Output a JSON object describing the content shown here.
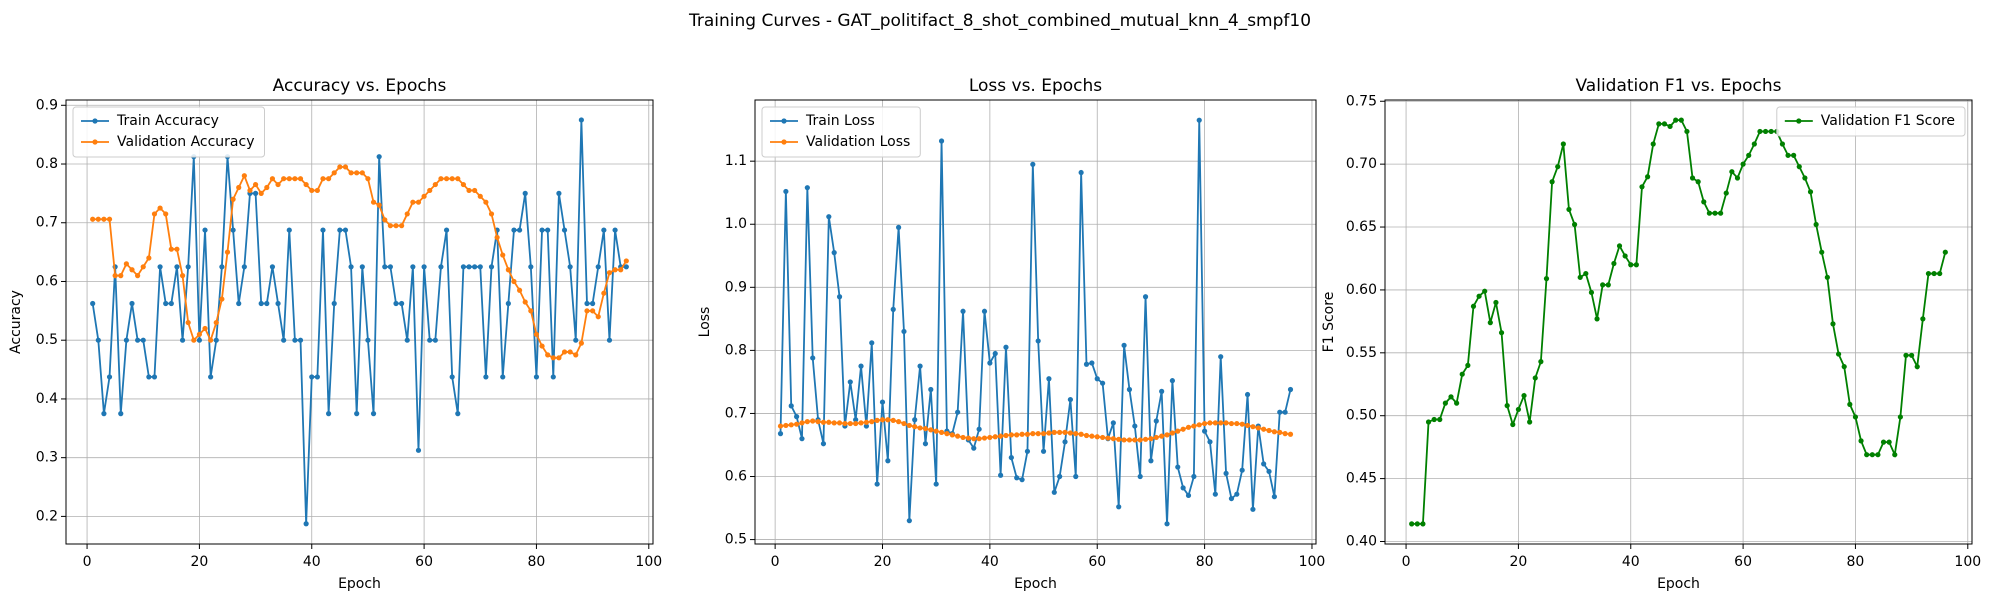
{
  "title": "Training Curves - GAT_politifact_8_shot_combined_mutual_knn_4_smpf10",
  "chart_data": [
    {
      "type": "line",
      "title": "Accuracy vs. Epochs",
      "xlabel": "Epoch",
      "ylabel": "Accuracy",
      "grid": true,
      "legend": "upper left",
      "x": [
        1,
        2,
        3,
        4,
        5,
        6,
        7,
        8,
        9,
        10,
        11,
        12,
        13,
        14,
        15,
        16,
        17,
        18,
        19,
        20,
        21,
        22,
        23,
        24,
        25,
        26,
        27,
        28,
        29,
        30,
        31,
        32,
        33,
        34,
        35,
        36,
        37,
        38,
        39,
        40,
        41,
        42,
        43,
        44,
        45,
        46,
        47,
        48,
        49,
        50,
        51,
        52,
        53,
        54,
        55,
        56,
        57,
        58,
        59,
        60,
        61,
        62,
        63,
        64,
        65,
        66,
        67,
        68,
        69,
        70,
        71,
        72,
        73,
        74,
        75,
        76,
        77,
        78,
        79,
        80,
        81,
        82,
        83,
        84,
        85,
        86,
        87,
        88,
        89,
        90,
        91,
        92,
        93,
        94,
        95,
        96
      ],
      "xlim": [
        -3.75,
        100.75
      ],
      "xticks": [
        0,
        20,
        40,
        60,
        80,
        100
      ],
      "ylim": [
        0.153,
        0.909
      ],
      "yticks": [
        0.2,
        0.3,
        0.4,
        0.5,
        0.6,
        0.7,
        0.8,
        0.9
      ],
      "series": [
        {
          "name": "Train Accuracy",
          "color": "#1f77b4",
          "values": [
            0.5625,
            0.5,
            0.375,
            0.4375,
            0.625,
            0.375,
            0.5,
            0.5625,
            0.5,
            0.5,
            0.4375,
            0.4375,
            0.625,
            0.5625,
            0.5625,
            0.625,
            0.5,
            0.625,
            0.8125,
            0.5,
            0.6875,
            0.4375,
            0.5,
            0.625,
            0.8125,
            0.6875,
            0.5625,
            0.625,
            0.75,
            0.75,
            0.5625,
            0.5625,
            0.625,
            0.5625,
            0.5,
            0.6875,
            0.5,
            0.5,
            0.1875,
            0.4375,
            0.4375,
            0.6875,
            0.375,
            0.5625,
            0.6875,
            0.6875,
            0.625,
            0.375,
            0.625,
            0.5,
            0.375,
            0.8125,
            0.625,
            0.625,
            0.5625,
            0.5625,
            0.5,
            0.625,
            0.3125,
            0.625,
            0.5,
            0.5,
            0.625,
            0.6875,
            0.4375,
            0.375,
            0.625,
            0.625,
            0.625,
            0.625,
            0.4375,
            0.625,
            0.6875,
            0.4375,
            0.5625,
            0.6875,
            0.6875,
            0.75,
            0.625,
            0.4375,
            0.6875,
            0.6875,
            0.4375,
            0.75,
            0.6875,
            0.625,
            0.5,
            0.875,
            0.5625,
            0.5625,
            0.625,
            0.6875,
            0.5,
            0.6875,
            0.625,
            0.625
          ]
        },
        {
          "name": "Validation Accuracy",
          "color": "#ff7f0e",
          "values": [
            0.706,
            0.706,
            0.706,
            0.706,
            0.61,
            0.61,
            0.63,
            0.62,
            0.61,
            0.625,
            0.64,
            0.715,
            0.725,
            0.715,
            0.655,
            0.655,
            0.61,
            0.53,
            0.5,
            0.51,
            0.52,
            0.5,
            0.53,
            0.57,
            0.65,
            0.74,
            0.76,
            0.78,
            0.755,
            0.765,
            0.75,
            0.76,
            0.775,
            0.765,
            0.775,
            0.775,
            0.775,
            0.775,
            0.765,
            0.755,
            0.755,
            0.775,
            0.775,
            0.785,
            0.795,
            0.795,
            0.785,
            0.785,
            0.785,
            0.775,
            0.735,
            0.73,
            0.705,
            0.695,
            0.695,
            0.695,
            0.715,
            0.735,
            0.735,
            0.745,
            0.755,
            0.765,
            0.775,
            0.775,
            0.775,
            0.775,
            0.765,
            0.755,
            0.755,
            0.745,
            0.735,
            0.715,
            0.675,
            0.645,
            0.62,
            0.6,
            0.585,
            0.565,
            0.55,
            0.51,
            0.49,
            0.475,
            0.47,
            0.47,
            0.48,
            0.48,
            0.475,
            0.495,
            0.55,
            0.55,
            0.54,
            0.58,
            0.615,
            0.62,
            0.62,
            0.635
          ]
        }
      ]
    },
    {
      "type": "line",
      "title": "Loss vs. Epochs",
      "xlabel": "Epoch",
      "ylabel": "Loss",
      "grid": true,
      "legend": "upper left",
      "x": [
        1,
        2,
        3,
        4,
        5,
        6,
        7,
        8,
        9,
        10,
        11,
        12,
        13,
        14,
        15,
        16,
        17,
        18,
        19,
        20,
        21,
        22,
        23,
        24,
        25,
        26,
        27,
        28,
        29,
        30,
        31,
        32,
        33,
        34,
        35,
        36,
        37,
        38,
        39,
        40,
        41,
        42,
        43,
        44,
        45,
        46,
        47,
        48,
        49,
        50,
        51,
        52,
        53,
        54,
        55,
        56,
        57,
        58,
        59,
        60,
        61,
        62,
        63,
        64,
        65,
        66,
        67,
        68,
        69,
        70,
        71,
        72,
        73,
        74,
        75,
        76,
        77,
        78,
        79,
        80,
        81,
        82,
        83,
        84,
        85,
        86,
        87,
        88,
        89,
        90,
        91,
        92,
        93,
        94,
        95,
        96
      ],
      "xlim": [
        -3.75,
        100.75
      ],
      "xticks": [
        0,
        20,
        40,
        60,
        80,
        100
      ],
      "ylim": [
        0.493,
        1.197
      ],
      "yticks": [
        0.5,
        0.6,
        0.7,
        0.8,
        0.9,
        {
          "value": 1.0,
          "label": "1.0"
        },
        1.1
      ],
      "series": [
        {
          "name": "Train Loss",
          "color": "#1f77b4",
          "values": [
            0.668,
            1.052,
            0.712,
            0.695,
            0.66,
            1.058,
            0.788,
            0.69,
            0.652,
            1.012,
            0.955,
            0.885,
            0.68,
            0.75,
            0.69,
            0.775,
            0.68,
            0.812,
            0.588,
            0.718,
            0.625,
            0.865,
            0.995,
            0.83,
            0.53,
            0.69,
            0.775,
            0.652,
            0.738,
            0.588,
            1.132,
            0.672,
            0.668,
            0.702,
            0.862,
            0.658,
            0.645,
            0.675,
            0.862,
            0.78,
            0.795,
            0.602,
            0.805,
            0.63,
            0.598,
            0.595,
            0.64,
            1.095,
            0.815,
            0.64,
            0.755,
            0.575,
            0.6,
            0.655,
            0.722,
            0.6,
            1.082,
            0.778,
            0.78,
            0.755,
            0.748,
            0.66,
            0.685,
            0.552,
            0.808,
            0.738,
            0.68,
            0.6,
            0.885,
            0.625,
            0.688,
            0.735,
            0.525,
            0.752,
            0.615,
            0.582,
            0.57,
            0.6,
            1.165,
            0.672,
            0.655,
            0.572,
            0.79,
            0.605,
            0.565,
            0.572,
            0.61,
            0.73,
            0.548,
            0.68,
            0.62,
            0.608,
            0.568,
            0.702,
            0.702,
            0.738
          ]
        },
        {
          "name": "Validation Loss",
          "color": "#ff7f0e",
          "values": [
            0.68,
            0.681,
            0.682,
            0.683,
            0.685,
            0.687,
            0.688,
            0.687,
            0.686,
            0.686,
            0.685,
            0.685,
            0.684,
            0.684,
            0.684,
            0.685,
            0.686,
            0.687,
            0.689,
            0.69,
            0.69,
            0.689,
            0.687,
            0.684,
            0.681,
            0.679,
            0.677,
            0.676,
            0.674,
            0.672,
            0.67,
            0.668,
            0.666,
            0.664,
            0.662,
            0.661,
            0.66,
            0.66,
            0.661,
            0.662,
            0.663,
            0.664,
            0.665,
            0.666,
            0.666,
            0.667,
            0.667,
            0.668,
            0.668,
            0.668,
            0.669,
            0.67,
            0.67,
            0.67,
            0.669,
            0.668,
            0.667,
            0.665,
            0.664,
            0.663,
            0.662,
            0.661,
            0.66,
            0.659,
            0.658,
            0.658,
            0.658,
            0.658,
            0.659,
            0.66,
            0.662,
            0.664,
            0.666,
            0.669,
            0.672,
            0.675,
            0.678,
            0.68,
            0.682,
            0.684,
            0.685,
            0.685,
            0.685,
            0.685,
            0.684,
            0.684,
            0.683,
            0.681,
            0.679,
            0.677,
            0.675,
            0.673,
            0.671,
            0.67,
            0.668,
            0.667
          ]
        }
      ]
    },
    {
      "type": "line",
      "title": "Validation F1 vs. Epochs",
      "xlabel": "Epoch",
      "ylabel": "F1 Score",
      "grid": true,
      "legend": "upper right",
      "x": [
        1,
        2,
        3,
        4,
        5,
        6,
        7,
        8,
        9,
        10,
        11,
        12,
        13,
        14,
        15,
        16,
        17,
        18,
        19,
        20,
        21,
        22,
        23,
        24,
        25,
        26,
        27,
        28,
        29,
        30,
        31,
        32,
        33,
        34,
        35,
        36,
        37,
        38,
        39,
        40,
        41,
        42,
        43,
        44,
        45,
        46,
        47,
        48,
        49,
        50,
        51,
        52,
        53,
        54,
        55,
        56,
        57,
        58,
        59,
        60,
        61,
        62,
        63,
        64,
        65,
        66,
        67,
        68,
        69,
        70,
        71,
        72,
        73,
        74,
        75,
        76,
        77,
        78,
        79,
        80,
        81,
        82,
        83,
        84,
        85,
        86,
        87,
        88,
        89,
        90,
        91,
        92,
        93,
        94,
        95,
        96
      ],
      "xlim": [
        -3.75,
        100.75
      ],
      "xticks": [
        0,
        20,
        40,
        60,
        80,
        100
      ],
      "ylim": [
        0.398,
        0.751
      ],
      "yticks": [
        {
          "value": 0.4,
          "label": "0.40"
        },
        0.45,
        {
          "value": 0.5,
          "label": "0.50"
        },
        0.55,
        {
          "value": 0.6,
          "label": "0.60"
        },
        0.65,
        {
          "value": 0.7,
          "label": "0.70"
        },
        0.75
      ],
      "series": [
        {
          "name": "Validation F1 Score",
          "color": "#008000",
          "values": [
            0.414,
            0.414,
            0.414,
            0.495,
            0.497,
            0.497,
            0.51,
            0.515,
            0.51,
            0.533,
            0.54,
            0.587,
            0.595,
            0.599,
            0.574,
            0.59,
            0.566,
            0.508,
            0.493,
            0.505,
            0.516,
            0.495,
            0.53,
            0.543,
            0.609,
            0.686,
            0.698,
            0.716,
            0.664,
            0.652,
            0.61,
            0.613,
            0.598,
            0.577,
            0.604,
            0.604,
            0.621,
            0.635,
            0.627,
            0.62,
            0.62,
            0.682,
            0.69,
            0.716,
            0.732,
            0.732,
            0.73,
            0.735,
            0.735,
            0.726,
            0.689,
            0.686,
            0.67,
            0.661,
            0.661,
            0.661,
            0.677,
            0.694,
            0.689,
            0.7,
            0.707,
            0.716,
            0.726,
            0.726,
            0.726,
            0.726,
            0.716,
            0.707,
            0.707,
            0.698,
            0.689,
            0.678,
            0.652,
            0.63,
            0.61,
            0.573,
            0.549,
            0.539,
            0.509,
            0.499,
            0.48,
            0.469,
            0.469,
            0.469,
            0.479,
            0.479,
            0.469,
            0.499,
            0.548,
            0.548,
            0.539,
            0.577,
            0.613,
            0.613,
            0.613,
            0.63
          ]
        }
      ]
    }
  ]
}
